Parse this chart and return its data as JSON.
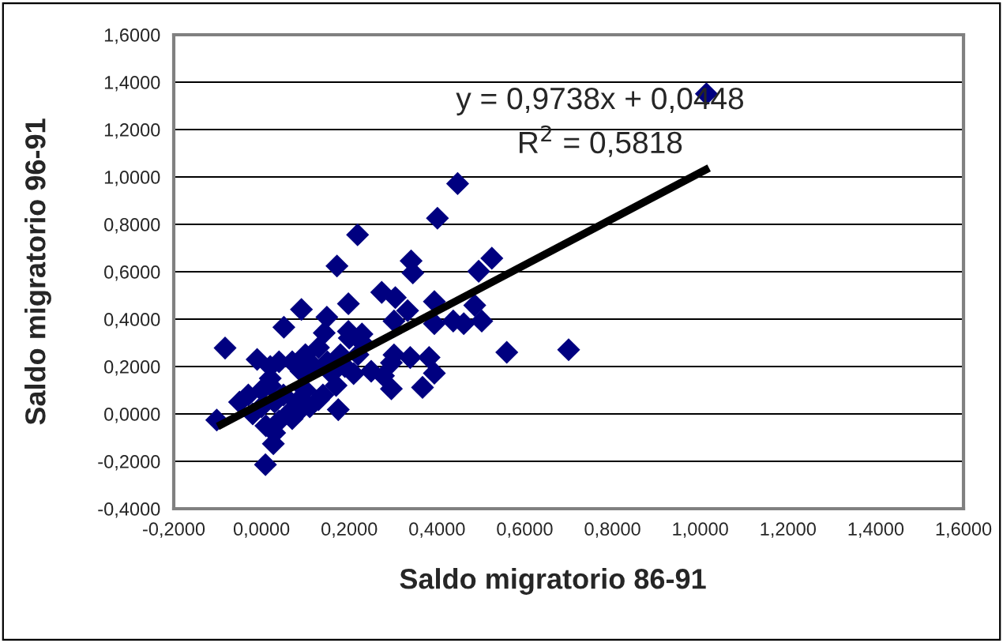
{
  "chart_data": {
    "type": "scatter",
    "xlabel": "Saldo migratorio 86-91",
    "ylabel": "Saldo migratorio 96-91",
    "annotations": [
      "y = 0,9738x + 0,0448",
      "R$^{2}$ = 0,5818"
    ],
    "xlim": [
      -0.2,
      1.6
    ],
    "ylim": [
      -0.4,
      1.6
    ],
    "xticks": [
      {
        "value": -0.2,
        "label": "-0,2000"
      },
      {
        "value": 0,
        "label": "0,0000"
      },
      {
        "value": 0.2,
        "label": "0,2000"
      },
      {
        "value": 0.4,
        "label": "0,4000"
      },
      {
        "value": 0.6,
        "label": "0,6000"
      },
      {
        "value": 0.8,
        "label": "0,8000"
      },
      {
        "value": 1.0,
        "label": "1,0000"
      },
      {
        "value": 1.2,
        "label": "1,2000"
      },
      {
        "value": 1.4,
        "label": "1,4000"
      },
      {
        "value": 1.6,
        "label": "1,6000"
      }
    ],
    "yticks": [
      {
        "value": -0.4,
        "label": "-0,4000"
      },
      {
        "value": -0.2,
        "label": "-0,2000"
      },
      {
        "value": 0,
        "label": "0,0000"
      },
      {
        "value": 0.2,
        "label": "0,2000"
      },
      {
        "value": 0.4,
        "label": "0,4000"
      },
      {
        "value": 0.6,
        "label": "0,6000"
      },
      {
        "value": 0.8,
        "label": "0,8000"
      },
      {
        "value": 1.0,
        "label": "1,0000"
      },
      {
        "value": 1.2,
        "label": "1,2000"
      },
      {
        "value": 1.4,
        "label": "1,4000"
      },
      {
        "value": 1.6,
        "label": "1,6000"
      }
    ],
    "grid": "y",
    "series": [
      {
        "color": "#000080",
        "marker": "diamond",
        "x": [
          1.014,
          0.447,
          0.401,
          0.219,
          0.172,
          0.341,
          0.345,
          0.525,
          0.495,
          0.198,
          0.274,
          0.305,
          0.394,
          0.486,
          0.091,
          0.051,
          0.149,
          0.333,
          0.302,
          0.394,
          0.437,
          0.461,
          0.502,
          0.143,
          0.198,
          0.229,
          -0.083,
          0.559,
          0.7,
          0.339,
          0.382,
          0.394,
          0.302,
          0.296,
          0.278,
          0.296,
          0.367,
          0.175,
          0.009,
          0.027,
          -0.102,
          -0.05,
          -0.03,
          -0.02,
          0.0,
          0.0,
          0.01,
          0.02,
          0.02,
          0.03,
          0.04,
          0.05,
          0.06,
          0.07,
          0.08,
          0.09,
          0.1,
          0.1,
          0.11,
          0.12,
          0.13,
          0.14,
          0.15,
          0.16,
          0.17,
          0.18,
          0.19,
          0.2,
          0.21,
          0.22,
          0.23,
          0.25,
          -0.01,
          0.04,
          0.03,
          0.07,
          0.09,
          0.13,
          0.02
        ],
        "values": [
          1.351,
          0.972,
          0.826,
          0.756,
          0.624,
          0.646,
          0.595,
          0.657,
          0.602,
          0.465,
          0.513,
          0.491,
          0.474,
          0.458,
          0.441,
          0.366,
          0.408,
          0.436,
          0.392,
          0.381,
          0.392,
          0.381,
          0.392,
          0.342,
          0.348,
          0.337,
          0.278,
          0.26,
          0.271,
          0.238,
          0.238,
          0.172,
          0.249,
          0.216,
          0.161,
          0.106,
          0.112,
          0.018,
          -0.214,
          -0.126,
          -0.026,
          0.05,
          0.08,
          0.0,
          0.1,
          0.03,
          -0.05,
          0.2,
          0.12,
          0.05,
          -0.03,
          0.08,
          0.0,
          0.22,
          0.05,
          0.18,
          0.25,
          0.1,
          0.03,
          0.2,
          0.28,
          0.08,
          0.22,
          0.17,
          0.12,
          0.25,
          0.2,
          0.32,
          0.17,
          0.25,
          0.3,
          0.18,
          0.23,
          0.22,
          -0.08,
          -0.02,
          0.02,
          0.06,
          0.15
        ]
      },
      {
        "type": "line",
        "color": "#000000",
        "x": [
          -0.1,
          1.02
        ],
        "values": [
          -0.053,
          1.038
        ]
      }
    ]
  }
}
